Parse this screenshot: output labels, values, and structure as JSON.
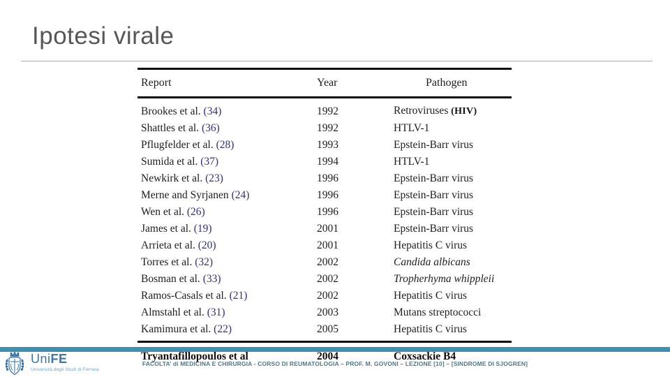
{
  "slide": {
    "title": "Ipotesi virale",
    "footer": {
      "logo_name_uni": "Uni",
      "logo_name_fe": "FE",
      "logo_subtitle": "Università degli Studi di Ferrara",
      "caption": "FACOLTA’ di MEDICINA E CHIRURGIA - CORSO DI REUMATOLOGIA – PROF. M. GOVONI – LEZIONE [10] – [SINDROME DI SJOGREN]"
    }
  },
  "table": {
    "headers": [
      "Report",
      "Year",
      "Pathogen"
    ],
    "rows": [
      {
        "report": "Brookes et al. (34)",
        "year": "1992",
        "pathogen": "Retroviruses",
        "note": "(HIV)"
      },
      {
        "report": "Shattles et al. (36)",
        "year": "1992",
        "pathogen": "HTLV-1"
      },
      {
        "report": "Pflugfelder et al. (28)",
        "year": "1993",
        "pathogen": "Epstein-Barr virus"
      },
      {
        "report": "Sumida et al. (37)",
        "year": "1994",
        "pathogen": "HTLV-1"
      },
      {
        "report": "Newkirk et al. (23)",
        "year": "1996",
        "pathogen": "Epstein-Barr virus"
      },
      {
        "report": "Merne and Syrjanen (24)",
        "year": "1996",
        "pathogen": "Epstein-Barr virus"
      },
      {
        "report": "Wen et al. (26)",
        "year": "1996",
        "pathogen": "Epstein-Barr virus"
      },
      {
        "report": "James et al. (19)",
        "year": "2001",
        "pathogen": "Epstein-Barr virus"
      },
      {
        "report": "Arrieta et al. (20)",
        "year": "2001",
        "pathogen": "Hepatitis C virus"
      },
      {
        "report": "Torres et al. (32)",
        "year": "2002",
        "pathogen": "Candida albicans",
        "italic": true
      },
      {
        "report": "Bosman et al. (33)",
        "year": "2002",
        "pathogen": "Tropherhyma whippleii",
        "italic": true
      },
      {
        "report": "Ramos-Casals et al. (21)",
        "year": "2002",
        "pathogen": "Hepatitis C virus"
      },
      {
        "report": "Almstahl et al. (31)",
        "year": "2003",
        "pathogen": "Mutans streptococci"
      },
      {
        "report": "Kamimura et al. (22)",
        "year": "2005",
        "pathogen": "Hepatitis C virus"
      }
    ],
    "added_row": {
      "report": "Tryantafillopoulos et al",
      "year": "2004",
      "pathogen": "Coxsackie B4"
    }
  },
  "colors": {
    "accent_bar": "#3d90b2",
    "citation_blue": "#2f3180",
    "logo_blue": "#3a76ad",
    "footer_text": "#4f7787",
    "title_gray": "#575757"
  }
}
